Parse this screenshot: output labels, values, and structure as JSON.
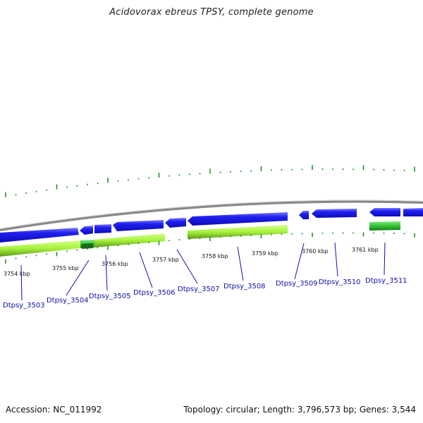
{
  "title": "Acidovorax ebreus TPSY, complete genome",
  "footer": {
    "accession": "Accession: NC_011992",
    "summary": "Topology: circular; Length: 3,796,573 bp; Genes: 3,544"
  },
  "colors": {
    "backbone": "#8a8a8a",
    "gene_forward": "#1818ee",
    "gene_forward_light": "#6c6cff",
    "cds_lime": "#a6f23c",
    "cds_lime_dark": "#5e9a18",
    "cds_green": "#3ac43a",
    "tick": "#1a8a1a",
    "label": "#1010aa"
  },
  "kbp_labels": [
    "3754 kbp",
    "3755 kbp",
    "3756 kbp",
    "3757 kbp",
    "3758 kbp",
    "3759 kbp",
    "3760 kbp",
    "3761 kbp"
  ],
  "genes": [
    "Dtpsy_3503",
    "Dtpsy_3504",
    "Dtpsy_3505",
    "Dtpsy_3506",
    "Dtpsy_3507",
    "Dtpsy_3508",
    "Dtpsy_3509",
    "Dtpsy_3510",
    "Dtpsy_3511"
  ]
}
